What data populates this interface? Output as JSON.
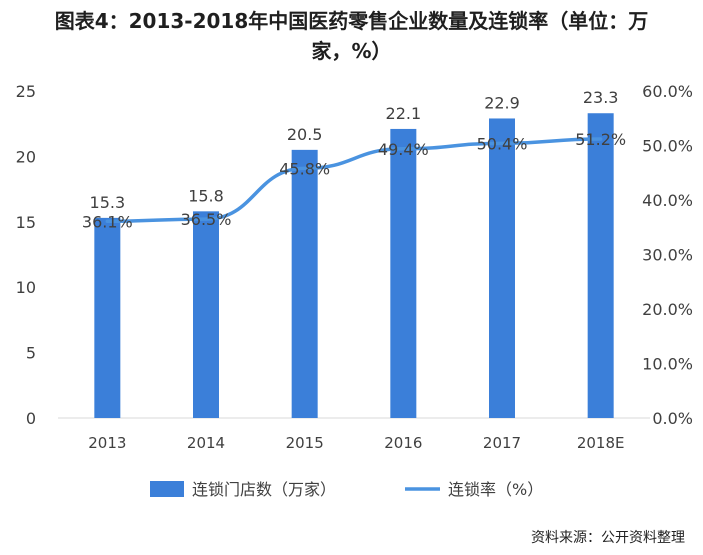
{
  "title": {
    "line1": "图表4：2013-2018年中国医药零售企业数量及连锁率（单位：万",
    "line2": "家，%）"
  },
  "source": "资料来源：公开资料整理",
  "colors": {
    "bar": "#3b7fd9",
    "line": "#4a93e0",
    "axis_text": "#404040",
    "grid": "#d9d9d9"
  },
  "chart_data": {
    "type": "bar",
    "categories": [
      "2013",
      "2014",
      "2015",
      "2016",
      "2017",
      "2018E"
    ],
    "series": [
      {
        "name": "连锁门店数（万家）",
        "type": "bar",
        "axis": "left",
        "values": [
          15.3,
          15.8,
          20.5,
          22.1,
          22.9,
          23.3
        ],
        "labels": [
          "15.3",
          "15.8",
          "20.5",
          "22.1",
          "22.9",
          "23.3"
        ]
      },
      {
        "name": "连锁率（%）",
        "type": "line",
        "axis": "right",
        "values": [
          36.1,
          36.5,
          45.8,
          49.4,
          50.4,
          51.2
        ],
        "labels": [
          "36.1%",
          "36.5%",
          "45.8%",
          "49.4%",
          "50.4%",
          "51.2%"
        ]
      }
    ],
    "y_left": {
      "ylim": [
        0,
        25
      ],
      "ticks": [
        "0",
        "5",
        "10",
        "15",
        "20",
        "25"
      ]
    },
    "y_right": {
      "ylim": [
        0,
        60
      ],
      "ticks": [
        "0.0%",
        "10.0%",
        "20.0%",
        "30.0%",
        "40.0%",
        "50.0%",
        "60.0%"
      ]
    },
    "legend_position": "bottom"
  }
}
